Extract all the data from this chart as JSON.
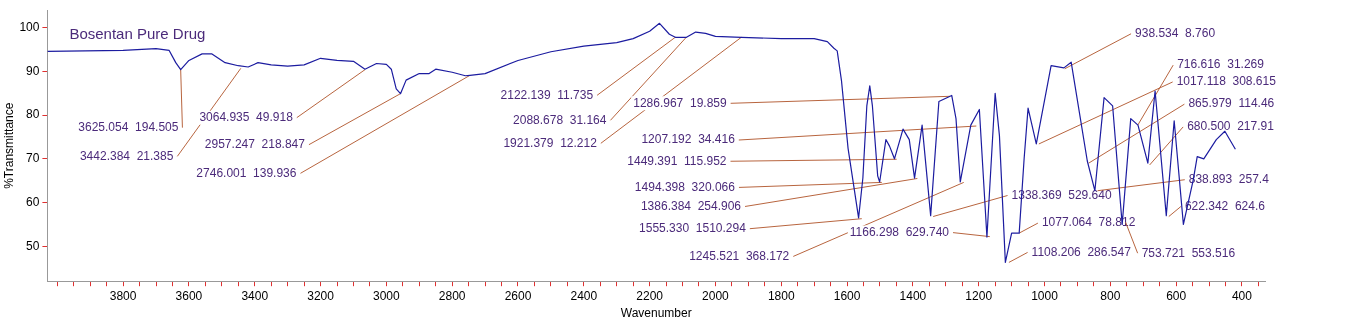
{
  "chart_data": {
    "type": "line",
    "title": "Bosentan Pure Drug",
    "xlabel": "Wavenumber",
    "ylabel": "%Transmittance",
    "xlim": [
      4030,
      330
    ],
    "ylim": [
      42,
      104
    ],
    "xticks": [
      {
        "value": 4000,
        "label": null
      },
      {
        "value": 3950,
        "label": null
      },
      {
        "value": 3900,
        "label": null
      },
      {
        "value": 3850,
        "label": null
      },
      3800,
      {
        "value": 3750,
        "label": null
      },
      {
        "value": 3700,
        "label": null
      },
      {
        "value": 3650,
        "label": null
      },
      3600,
      {
        "value": 3550,
        "label": null
      },
      {
        "value": 3500,
        "label": null
      },
      {
        "value": 3450,
        "label": null
      },
      3400,
      {
        "value": 3350,
        "label": null
      },
      {
        "value": 3300,
        "label": null
      },
      {
        "value": 3250,
        "label": null
      },
      3200,
      {
        "value": 3150,
        "label": null
      },
      {
        "value": 3100,
        "label": null
      },
      {
        "value": 3050,
        "label": null
      },
      3000,
      {
        "value": 2950,
        "label": null
      },
      {
        "value": 2900,
        "label": null
      },
      {
        "value": 2850,
        "label": null
      },
      2800,
      {
        "value": 2750,
        "label": null
      },
      {
        "value": 2700,
        "label": null
      },
      {
        "value": 2650,
        "label": null
      },
      2600,
      {
        "value": 2550,
        "label": null
      },
      {
        "value": 2500,
        "label": null
      },
      {
        "value": 2450,
        "label": null
      },
      2400,
      {
        "value": 2350,
        "label": null
      },
      {
        "value": 2300,
        "label": null
      },
      {
        "value": 2250,
        "label": null
      },
      2200,
      {
        "value": 2150,
        "label": null
      },
      {
        "value": 2100,
        "label": null
      },
      {
        "value": 2050,
        "label": null
      },
      2000,
      {
        "value": 1950,
        "label": null
      },
      {
        "value": 1900,
        "label": null
      },
      {
        "value": 1850,
        "label": null
      },
      1800,
      {
        "value": 1750,
        "label": null
      },
      {
        "value": 1700,
        "label": null
      },
      {
        "value": 1650,
        "label": null
      },
      1600,
      {
        "value": 1550,
        "label": null
      },
      {
        "value": 1500,
        "label": null
      },
      {
        "value": 1450,
        "label": null
      },
      1400,
      {
        "value": 1350,
        "label": null
      },
      {
        "value": 1300,
        "label": null
      },
      {
        "value": 1250,
        "label": null
      },
      1200,
      {
        "value": 1150,
        "label": null
      },
      {
        "value": 1100,
        "label": null
      },
      {
        "value": 1050,
        "label": null
      },
      1000,
      {
        "value": 950,
        "label": null
      },
      {
        "value": 900,
        "label": null
      },
      {
        "value": 850,
        "label": null
      },
      800,
      {
        "value": 750,
        "label": null
      },
      {
        "value": 700,
        "label": null
      },
      {
        "value": 650,
        "label": null
      },
      600,
      {
        "value": 550,
        "label": null
      },
      {
        "value": 500,
        "label": null
      },
      {
        "value": 450,
        "label": null
      },
      400,
      {
        "value": 350,
        "label": null
      }
    ],
    "yticks": [
      50,
      60,
      70,
      80,
      90,
      100
    ],
    "series": [
      {
        "color": "#1c1ca0",
        "x": [
          4030,
          3800,
          3700,
          3660,
          3640,
          3625,
          3600,
          3560,
          3530,
          3490,
          3450,
          3420,
          3390,
          3350,
          3300,
          3250,
          3200,
          3150,
          3100,
          3065,
          3030,
          3000,
          2985,
          2970,
          2957,
          2940,
          2900,
          2870,
          2850,
          2800,
          2760,
          2746,
          2700,
          2600,
          2500,
          2400,
          2300,
          2250,
          2200,
          2170,
          2140,
          2122,
          2088,
          2060,
          2030,
          2000,
          1921,
          1800,
          1700,
          1660,
          1640,
          1630,
          1617,
          1597,
          1565,
          1552,
          1540,
          1531,
          1523,
          1507,
          1501,
          1482,
          1471,
          1456,
          1430,
          1411,
          1395,
          1372,
          1346,
          1321,
          1282,
          1269,
          1256,
          1224,
          1198,
          1175,
          1150,
          1137,
          1119,
          1100,
          1077,
          1062,
          1050,
          1025,
          980,
          941,
          919,
          870,
          847,
          819,
          793,
          764,
          738,
          716,
          686,
          664,
          630,
          606,
          578,
          548,
          536,
          516,
          478,
          452,
          420
        ],
        "values": [
          94.6,
          94.8,
          95.2,
          94.8,
          92,
          90.4,
          92.5,
          94,
          94,
          92,
          91.3,
          91,
          92,
          91.5,
          91.2,
          91.5,
          93,
          92.5,
          92.3,
          90.5,
          91.8,
          91.6,
          90.5,
          86,
          84.9,
          88,
          89.5,
          89.5,
          90.5,
          89.8,
          89,
          89.1,
          89.5,
          92.5,
          94.5,
          95.8,
          96.6,
          97.5,
          99.2,
          101,
          98.5,
          97.8,
          97.8,
          99,
          98.7,
          98,
          97.8,
          97.5,
          97.5,
          96.8,
          95.3,
          94.7,
          87.9,
          72.4,
          56.5,
          65.6,
          82.1,
          86.7,
          82.1,
          66.1,
          64.7,
          74.4,
          72.9,
          70,
          76.8,
          74.4,
          65.6,
          77.7,
          57,
          83.1,
          84.5,
          79.2,
          64.7,
          77.7,
          81.3,
          52.1,
          85,
          75.3,
          46.3,
          53,
          53,
          70,
          81.6,
          73.4,
          91.3,
          90.8,
          92.1,
          69.5,
          62.7,
          84,
          82.1,
          55,
          79.2,
          77.7,
          69,
          85.5,
          57,
          78.7,
          55,
          65.2,
          70.5,
          70,
          74.4,
          76.3,
          72.2
        ]
      }
    ],
    "annotations": [
      {
        "text": "3625.054  194.505",
        "x": 3625.054,
        "y": 90.4
      },
      {
        "text": "3442.384  21.385",
        "x": 3442.384,
        "y": 90.7
      },
      {
        "text": "3064.935  49.918",
        "x": 3064.935,
        "y": 90.4
      },
      {
        "text": "2957.247  218.847",
        "x": 2957.247,
        "y": 84.9
      },
      {
        "text": "2746.001  139.936",
        "x": 2746.001,
        "y": 89.1
      },
      {
        "text": "2122.139  11.735",
        "x": 2122.139,
        "y": 97.8
      },
      {
        "text": "2088.678  31.164",
        "x": 2088.678,
        "y": 97.8
      },
      {
        "text": "1921.379  12.212",
        "x": 1921.379,
        "y": 97.8
      },
      {
        "text": "1286.967  19.859",
        "x": 1286.967,
        "y": 84.3
      },
      {
        "text": "1207.192  34.416",
        "x": 1207.192,
        "y": 77.5
      },
      {
        "text": "1449.391  115.952",
        "x": 1449.391,
        "y": 69.9
      },
      {
        "text": "1494.398  320.066",
        "x": 1494.398,
        "y": 64.6
      },
      {
        "text": "1386.384  254.906",
        "x": 1386.384,
        "y": 65.5
      },
      {
        "text": "1555.330  1510.294",
        "x": 1555.33,
        "y": 56.3
      },
      {
        "text": "1245.521  368.172",
        "x": 1245.521,
        "y": 64.6
      },
      {
        "text": "1166.298  629.740",
        "x": 1166.298,
        "y": 52.2
      },
      {
        "text": "1338.369  529.640",
        "x": 1338.369,
        "y": 56.8
      },
      {
        "text": "1077.064  78.812",
        "x": 1077.064,
        "y": 53
      },
      {
        "text": "1108.206  286.547",
        "x": 1108.206,
        "y": 46.3
      },
      {
        "text": "938.534  8.760",
        "x": 938.534,
        "y": 90.6
      },
      {
        "text": "716.616  31.269",
        "x": 716.616,
        "y": 77.7
      },
      {
        "text": "1017.118  308.615",
        "x": 1017.118,
        "y": 73.4
      },
      {
        "text": "865.979  114.46",
        "x": 865.979,
        "y": 69
      },
      {
        "text": "680.500  217.91",
        "x": 680.5,
        "y": 68.6
      },
      {
        "text": "838.893  257.4",
        "x": 838.893,
        "y": 62.7
      },
      {
        "text": "622.342  624.6",
        "x": 622.342,
        "y": 56.8
      },
      {
        "text": "753.721  553.516",
        "x": 753.721,
        "y": 55.5
      }
    ]
  }
}
